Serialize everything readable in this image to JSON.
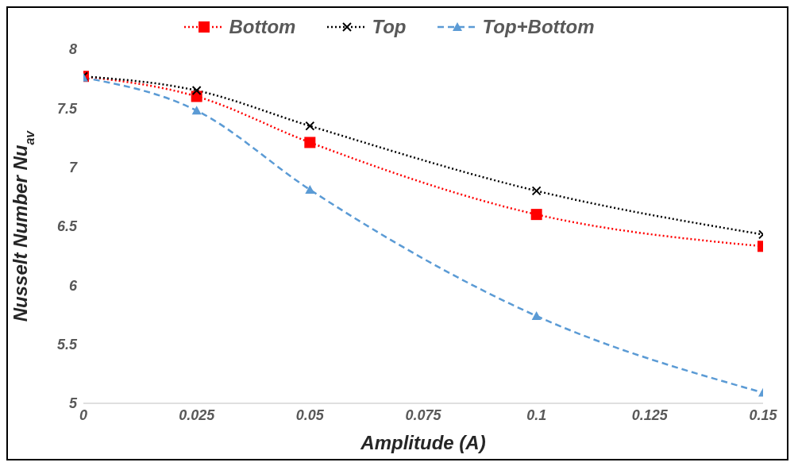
{
  "chart_data": {
    "type": "line",
    "xlabel": "Amplitude (A)",
    "ylabel": "Nusselt Number Nu$_{av}$",
    "x": [
      0,
      0.025,
      0.05,
      0.1,
      0.15
    ],
    "series": [
      {
        "name": "Bottom",
        "color": "#ff0000",
        "marker": "square",
        "line_style": "dotted",
        "values": [
          7.77,
          7.6,
          7.21,
          6.6,
          6.33
        ]
      },
      {
        "name": "Top",
        "color": "#000000",
        "marker": "cross",
        "line_style": "dotted",
        "values": [
          7.77,
          7.65,
          7.35,
          6.8,
          6.43
        ]
      },
      {
        "name": "Top+Bottom",
        "color": "#5b9bd5",
        "marker": "triangle",
        "line_style": "dashed",
        "values": [
          7.76,
          7.48,
          6.81,
          5.74,
          5.09
        ]
      }
    ],
    "xlim": [
      0,
      0.15
    ],
    "xticks": [
      0,
      0.025,
      0.05,
      0.075,
      0.1,
      0.125,
      0.15
    ],
    "ylim": [
      5,
      8
    ],
    "yticks": [
      5,
      5.5,
      6,
      6.5,
      7,
      7.5,
      8
    ],
    "grid": false,
    "legend": "top"
  }
}
